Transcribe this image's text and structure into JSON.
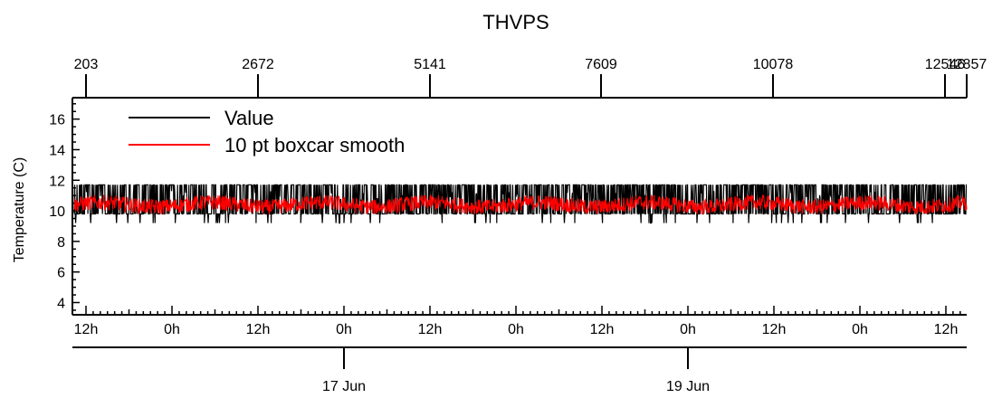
{
  "chart_data": {
    "type": "line",
    "title": "THVPS",
    "ylabel": "Temperature (C)",
    "xlabel": "",
    "ylim": [
      3.2,
      17.4
    ],
    "y_ticks": [
      4,
      6,
      8,
      10,
      12,
      14,
      16
    ],
    "y_minor_step": 0.5,
    "x_time_ticks": [
      "12h",
      "0h",
      "12h",
      "0h",
      "12h",
      "0h",
      "12h",
      "0h",
      "12h",
      "0h",
      "12h"
    ],
    "x_date_ticks": [
      "17 Jun",
      "19 Jun"
    ],
    "top_index_ticks": [
      "203",
      "2672",
      "5141",
      "7609",
      "10078",
      "12546",
      "12857"
    ],
    "legend_position": "top-left",
    "series": [
      {
        "name": "Value",
        "color": "#000000",
        "description_values": {
          "typical_low": 9.8,
          "typical_high": 11.7,
          "dip_low": 9.2
        }
      },
      {
        "name": "10 pt boxcar smooth",
        "color": "#ff0000",
        "description_values": {
          "mean": 10.4,
          "low": 9.6,
          "high": 11.3
        }
      }
    ]
  }
}
